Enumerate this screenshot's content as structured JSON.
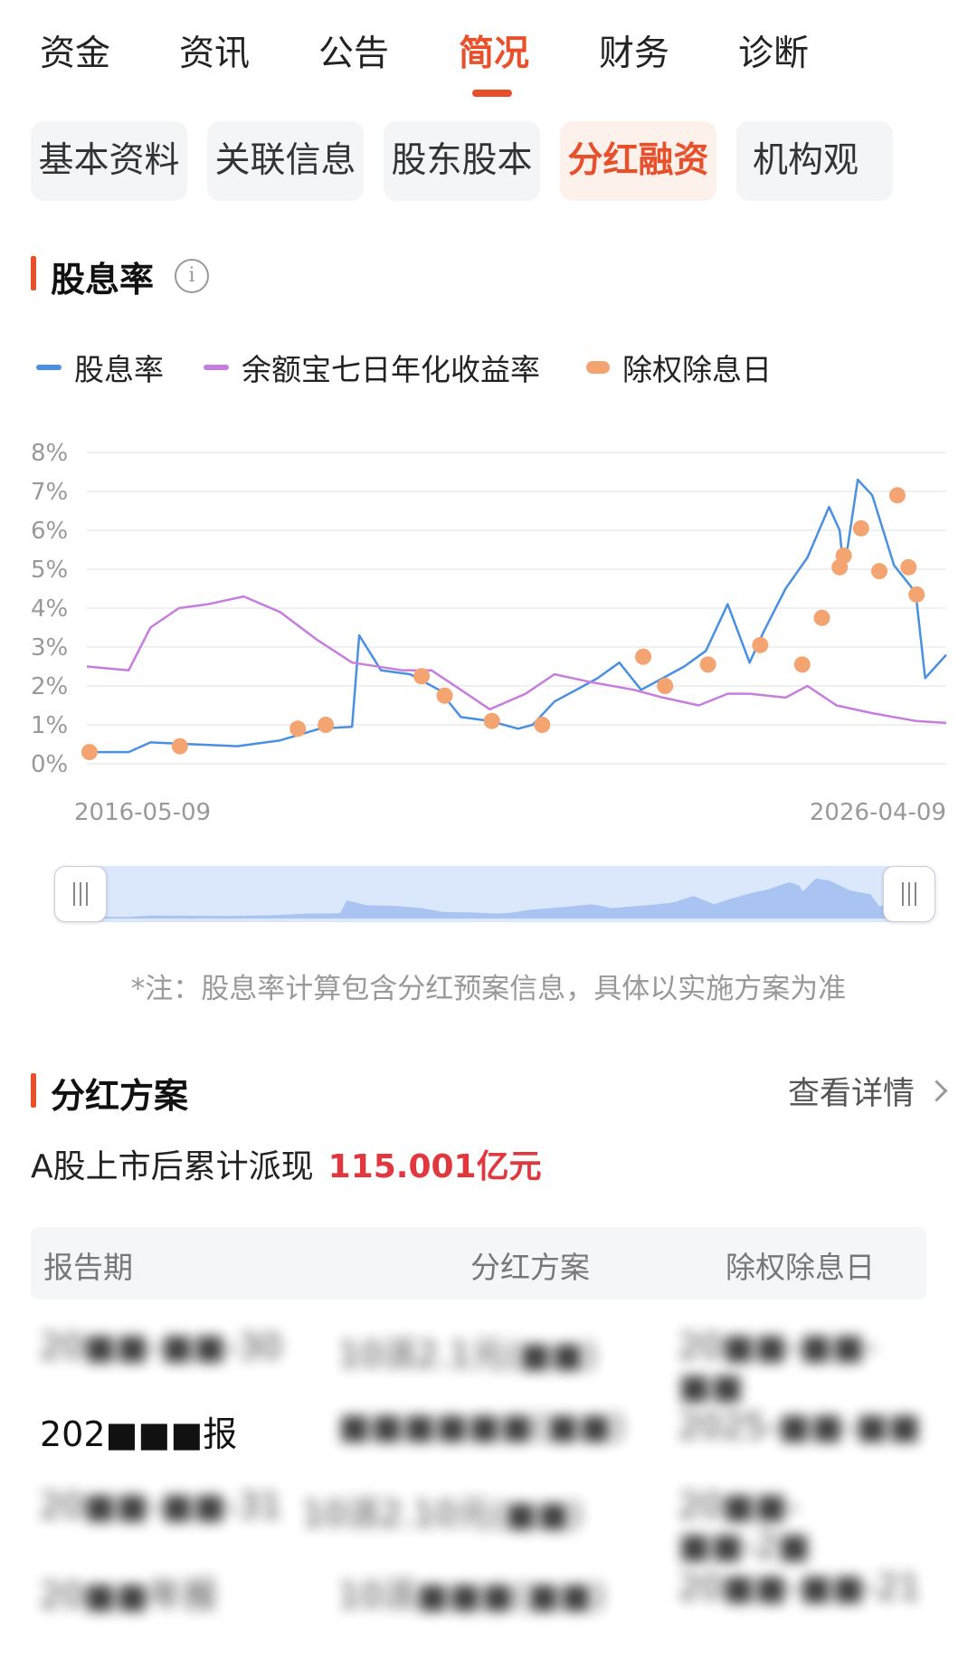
{
  "tabs": [
    {
      "label": "资金"
    },
    {
      "label": "资讯"
    },
    {
      "label": "公告"
    },
    {
      "label": "简况",
      "active": true
    },
    {
      "label": "财务"
    },
    {
      "label": "诊断"
    }
  ],
  "subtabs": [
    {
      "label": "基本资料"
    },
    {
      "label": "关联信息"
    },
    {
      "label": "股东股本"
    },
    {
      "label": "分红融资",
      "active": true
    },
    {
      "label": "机构观"
    }
  ],
  "dividend_section": {
    "title": "股息率",
    "info_icon": "info-icon",
    "legend": [
      {
        "label": "股息率",
        "color": "#4a90e2",
        "shape": "line"
      },
      {
        "label": "余额宝七日年化收益率",
        "color": "#c77dde",
        "shape": "line"
      },
      {
        "label": "除权除息日",
        "color": "#f4a470",
        "shape": "dot"
      }
    ],
    "x_start": "2016-05-09",
    "x_end": "2026-04-09",
    "note": "*注：股息率计算包含分红预案信息，具体以实施方案为准"
  },
  "chart_data": {
    "type": "line",
    "x_range": [
      "2016-05-09",
      "2026-04-09"
    ],
    "ylim": [
      0,
      8
    ],
    "y_ticks": [
      "0%",
      "1%",
      "2%",
      "3%",
      "4%",
      "5%",
      "6%",
      "7%",
      "8%"
    ],
    "x_tick_labels": [
      "2016-05-09",
      "2026-04-09"
    ],
    "grid": true,
    "legend_position": "top-left",
    "series": [
      {
        "name": "股息率",
        "color": "#4a90e2",
        "points": [
          [
            "2016-05-09",
            0.3
          ],
          [
            "2016-11-01",
            0.3
          ],
          [
            "2017-02-01",
            0.55
          ],
          [
            "2017-08-01",
            0.5
          ],
          [
            "2018-02-01",
            0.45
          ],
          [
            "2018-08-01",
            0.6
          ],
          [
            "2019-01-15",
            0.9
          ],
          [
            "2019-06-01",
            0.95
          ],
          [
            "2019-07-01",
            3.3
          ],
          [
            "2019-10-01",
            2.4
          ],
          [
            "2020-02-01",
            2.3
          ],
          [
            "2020-06-01",
            1.9
          ],
          [
            "2020-09-01",
            1.2
          ],
          [
            "2021-01-01",
            1.1
          ],
          [
            "2021-05-01",
            0.9
          ],
          [
            "2021-07-01",
            1.0
          ],
          [
            "2021-10-01",
            1.6
          ],
          [
            "2022-01-01",
            1.9
          ],
          [
            "2022-04-01",
            2.2
          ],
          [
            "2022-07-01",
            2.6
          ],
          [
            "2022-10-01",
            1.9
          ],
          [
            "2023-01-01",
            2.2
          ],
          [
            "2023-04-01",
            2.5
          ],
          [
            "2023-07-01",
            2.9
          ],
          [
            "2023-10-01",
            4.1
          ],
          [
            "2024-01-01",
            2.6
          ],
          [
            "2024-03-01",
            3.4
          ],
          [
            "2024-06-01",
            4.5
          ],
          [
            "2024-09-01",
            5.3
          ],
          [
            "2024-12-01",
            6.6
          ],
          [
            "2025-01-15",
            6.0
          ],
          [
            "2025-02-01",
            4.9
          ],
          [
            "2025-04-01",
            7.3
          ],
          [
            "2025-06-01",
            6.9
          ],
          [
            "2025-09-01",
            5.1
          ],
          [
            "2025-12-01",
            4.4
          ],
          [
            "2026-01-10",
            2.2
          ],
          [
            "2026-04-09",
            2.8
          ]
        ]
      },
      {
        "name": "余额宝七日年化收益率",
        "color": "#c77dde",
        "points": [
          [
            "2016-05-09",
            2.5
          ],
          [
            "2016-11-01",
            2.4
          ],
          [
            "2017-02-01",
            3.5
          ],
          [
            "2017-06-01",
            4.0
          ],
          [
            "2017-10-01",
            4.1
          ],
          [
            "2018-03-01",
            4.3
          ],
          [
            "2018-08-01",
            3.9
          ],
          [
            "2019-01-01",
            3.2
          ],
          [
            "2019-06-01",
            2.6
          ],
          [
            "2020-01-01",
            2.4
          ],
          [
            "2020-05-01",
            2.4
          ],
          [
            "2020-09-01",
            1.9
          ],
          [
            "2021-01-01",
            1.4
          ],
          [
            "2021-06-01",
            1.8
          ],
          [
            "2021-10-01",
            2.3
          ],
          [
            "2022-03-01",
            2.1
          ],
          [
            "2022-09-01",
            1.9
          ],
          [
            "2023-01-01",
            1.7
          ],
          [
            "2023-06-01",
            1.5
          ],
          [
            "2023-10-01",
            1.8
          ],
          [
            "2024-01-01",
            1.8
          ],
          [
            "2024-06-01",
            1.7
          ],
          [
            "2024-09-01",
            2.0
          ],
          [
            "2025-01-01",
            1.5
          ],
          [
            "2025-06-01",
            1.3
          ],
          [
            "2025-12-01",
            1.1
          ],
          [
            "2026-04-09",
            1.05
          ]
        ]
      },
      {
        "name": "除权除息日",
        "color": "#f4a470",
        "type": "scatter",
        "points": [
          [
            "2016-05-20",
            0.3
          ],
          [
            "2017-06-05",
            0.45
          ],
          [
            "2018-10-15",
            0.9
          ],
          [
            "2019-02-10",
            1.0
          ],
          [
            "2020-03-20",
            2.25
          ],
          [
            "2020-06-25",
            1.75
          ],
          [
            "2021-01-10",
            1.1
          ],
          [
            "2021-08-10",
            1.0
          ],
          [
            "2022-10-10",
            2.75
          ],
          [
            "2023-01-10",
            2.0
          ],
          [
            "2023-07-10",
            2.55
          ],
          [
            "2024-02-15",
            3.05
          ],
          [
            "2024-08-10",
            2.55
          ],
          [
            "2024-11-01",
            3.75
          ],
          [
            "2025-01-15",
            5.05
          ],
          [
            "2025-02-01",
            5.35
          ],
          [
            "2025-04-15",
            6.05
          ],
          [
            "2025-07-01",
            4.95
          ],
          [
            "2025-09-15",
            6.9
          ],
          [
            "2025-11-01",
            5.05
          ],
          [
            "2025-12-05",
            4.35
          ]
        ]
      }
    ]
  },
  "plan_section": {
    "title": "分红方案",
    "view_more": "查看详情",
    "cumulative_label": "A股上市后累计派现",
    "cumulative_value": "115.001亿元",
    "headers": [
      "报告期",
      "分红方案",
      "除权除息日"
    ],
    "rows": [
      [
        "20■■-■■-30",
        "10派2.1元(■■)",
        "20■■-■■-■■"
      ],
      [
        "202■■■报",
        "■■■■■■(■■)",
        "2025-■■-■■"
      ],
      [
        "20■■-■■-31",
        "10派2.10元(■■)",
        "20■■-■■-2■"
      ],
      [
        "20■■年报",
        "10派■■■(■■)",
        "20■■-■■-21"
      ]
    ]
  }
}
